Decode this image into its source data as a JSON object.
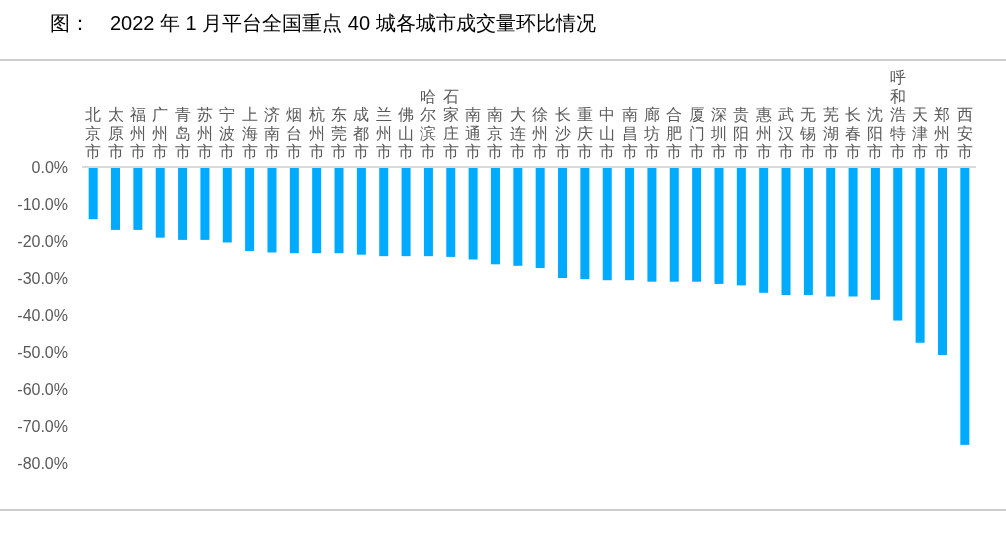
{
  "chart_data": {
    "type": "bar",
    "title": "图：　2022 年 1 月平台全国重点 40 城各城市成交量环比情况",
    "categories": [
      "北京市",
      "太原市",
      "福州市",
      "广州市",
      "青岛市",
      "苏州市",
      "宁波市",
      "上海市",
      "济南市",
      "烟台市",
      "杭州市",
      "东莞市",
      "成都市",
      "兰州市",
      "佛山市",
      "哈尔滨市",
      "石家庄市",
      "南通市",
      "南京市",
      "大连市",
      "徐州市",
      "长沙市",
      "重庆市",
      "中山市",
      "南昌市",
      "廊坊市",
      "合肥市",
      "厦门市",
      "深圳市",
      "贵阳市",
      "惠州市",
      "武汉市",
      "无锡市",
      "芜湖市",
      "长春市",
      "沈阳市",
      "呼和浩特市",
      "天津市",
      "郑州市",
      "西安市"
    ],
    "values": [
      -14.1,
      -17.0,
      -17.0,
      -19.1,
      -19.7,
      -19.7,
      -20.4,
      -22.7,
      -23.1,
      -23.3,
      -23.3,
      -23.3,
      -23.7,
      -24.1,
      -24.1,
      -24.1,
      -24.3,
      -25.0,
      -26.3,
      -26.7,
      -27.3,
      -30.0,
      -30.3,
      -30.6,
      -30.6,
      -31.0,
      -31.0,
      -31.0,
      -31.6,
      -32.0,
      -34.0,
      -34.6,
      -34.6,
      -35.0,
      -35.0,
      -35.9,
      -41.5,
      -47.5,
      -50.8,
      -75.1
    ],
    "color": "#00aaff",
    "ylim": [
      -80,
      0
    ],
    "yticks": [
      {
        "value": 0,
        "label": "0.0%"
      },
      {
        "value": -10,
        "label": "-10.0%"
      },
      {
        "value": -20,
        "label": "-20.0%"
      },
      {
        "value": -30,
        "label": "-30.0%"
      },
      {
        "value": -40,
        "label": "-40.0%"
      },
      {
        "value": -50,
        "label": "-50.0%"
      },
      {
        "value": -60,
        "label": "-60.0%"
      },
      {
        "value": -70,
        "label": "-70.0%"
      },
      {
        "value": -80,
        "label": "-80.0%"
      }
    ],
    "grid": false
  }
}
